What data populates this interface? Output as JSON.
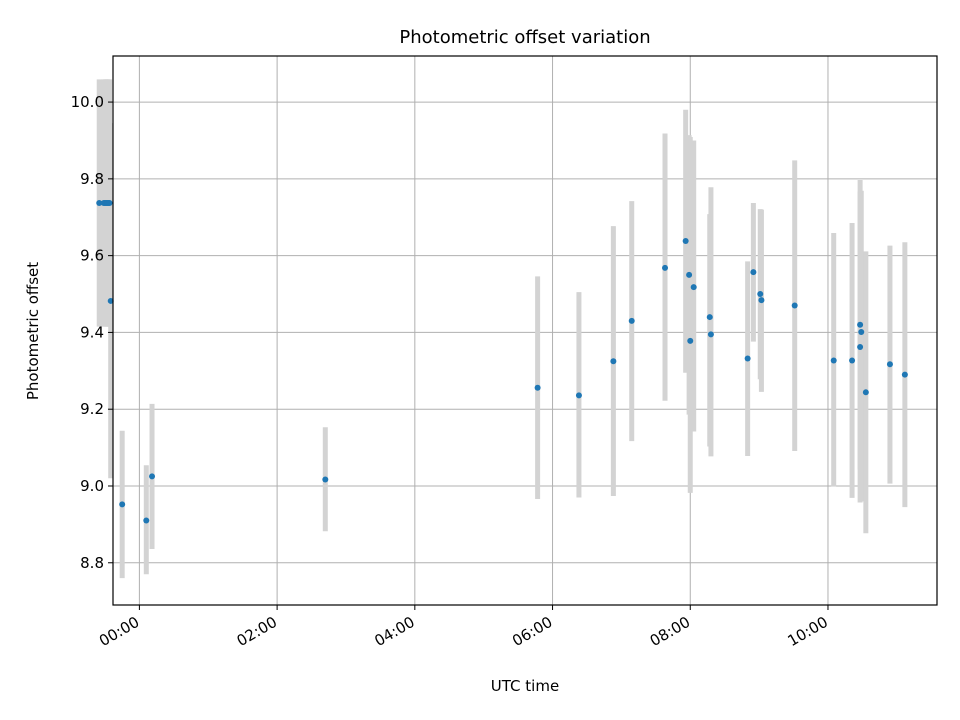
{
  "chart_data": {
    "type": "scatter",
    "title": "Photometric offset variation",
    "xlabel": "UTC time",
    "ylabel": "Photometric offset",
    "grid": true,
    "legend": "none",
    "xlim": [
      "-0:23",
      "11:35"
    ],
    "ylim": [
      8.69,
      10.12
    ],
    "x_ticks": [
      "00:00",
      "02:00",
      "04:00",
      "06:00",
      "08:00",
      "10:00"
    ],
    "y_ticks": [
      "8.8",
      "9.0",
      "9.2",
      "9.4",
      "9.6",
      "9.8",
      "10.0"
    ],
    "point_color": "#1f77b4",
    "errorbar_color": "#d3d3d3",
    "series": [
      {
        "points": [
          {
            "x": "-0:35",
            "y": 9.737,
            "ylo": 9.415,
            "yhi": 10.059
          },
          {
            "x": "-0:31",
            "y": 9.737,
            "ylo": 9.415,
            "yhi": 10.059
          },
          {
            "x": "-0:30",
            "y": 9.737,
            "ylo": 9.415,
            "yhi": 10.059
          },
          {
            "x": "-0:29",
            "y": 9.737,
            "ylo": 9.415,
            "yhi": 10.059
          },
          {
            "x": "-0:28",
            "y": 9.737,
            "ylo": 9.415,
            "yhi": 10.059
          },
          {
            "x": "-0:27",
            "y": 9.737,
            "ylo": 9.415,
            "yhi": 10.059
          },
          {
            "x": "-0:26",
            "y": 9.737,
            "ylo": 9.415,
            "yhi": 10.059
          },
          {
            "x": "-0:25",
            "y": 9.482,
            "ylo": 9.02,
            "yhi": 9.945
          },
          {
            "x": "-0:15",
            "y": 8.952,
            "ylo": 8.76,
            "yhi": 9.144
          },
          {
            "x": "0:06",
            "y": 8.91,
            "ylo": 8.77,
            "yhi": 9.054
          },
          {
            "x": "0:11",
            "y": 9.025,
            "ylo": 8.836,
            "yhi": 9.214
          },
          {
            "x": "2:42",
            "y": 9.017,
            "ylo": 8.882,
            "yhi": 9.153
          },
          {
            "x": "5:47",
            "y": 9.256,
            "ylo": 8.966,
            "yhi": 9.546
          },
          {
            "x": "6:23",
            "y": 9.236,
            "ylo": 8.97,
            "yhi": 9.505
          },
          {
            "x": "6:53",
            "y": 9.325,
            "ylo": 8.974,
            "yhi": 9.677
          },
          {
            "x": "7:09",
            "y": 9.43,
            "ylo": 9.117,
            "yhi": 9.742
          },
          {
            "x": "7:38",
            "y": 9.568,
            "ylo": 9.222,
            "yhi": 9.918
          },
          {
            "x": "7:56",
            "y": 9.638,
            "ylo": 9.295,
            "yhi": 9.98
          },
          {
            "x": "7:59",
            "y": 9.55,
            "ylo": 9.186,
            "yhi": 9.914
          },
          {
            "x": "8:00",
            "y": 9.378,
            "ylo": 8.982,
            "yhi": 9.909
          },
          {
            "x": "8:03",
            "y": 9.518,
            "ylo": 9.142,
            "yhi": 9.9
          },
          {
            "x": "8:17",
            "y": 9.44,
            "ylo": 9.103,
            "yhi": 9.708
          },
          {
            "x": "8:18",
            "y": 9.395,
            "ylo": 9.077,
            "yhi": 9.778
          },
          {
            "x": "8:50",
            "y": 9.332,
            "ylo": 9.078,
            "yhi": 9.585
          },
          {
            "x": "8:55",
            "y": 9.557,
            "ylo": 9.376,
            "yhi": 9.737
          },
          {
            "x": "9:01",
            "y": 9.5,
            "ylo": 9.278,
            "yhi": 9.721
          },
          {
            "x": "9:02",
            "y": 9.484,
            "ylo": 9.245,
            "yhi": 9.72
          },
          {
            "x": "9:31",
            "y": 9.47,
            "ylo": 9.091,
            "yhi": 9.848
          },
          {
            "x": "10:05",
            "y": 9.327,
            "ylo": 8.999,
            "yhi": 9.659
          },
          {
            "x": "10:21",
            "y": 9.327,
            "ylo": 8.969,
            "yhi": 9.685
          },
          {
            "x": "10:28",
            "y": 9.42,
            "ylo": 9.043,
            "yhi": 9.797
          },
          {
            "x": "10:29",
            "y": 9.401,
            "ylo": 8.96,
            "yhi": 9.769
          },
          {
            "x": "10:28",
            "y": 9.362,
            "ylo": 8.957,
            "yhi": 9.767
          },
          {
            "x": "10:33",
            "y": 9.244,
            "ylo": 8.877,
            "yhi": 9.611
          },
          {
            "x": "10:54",
            "y": 9.317,
            "ylo": 9.006,
            "yhi": 9.626
          },
          {
            "x": "11:07",
            "y": 9.29,
            "ylo": 8.945,
            "yhi": 9.635
          }
        ]
      }
    ]
  }
}
